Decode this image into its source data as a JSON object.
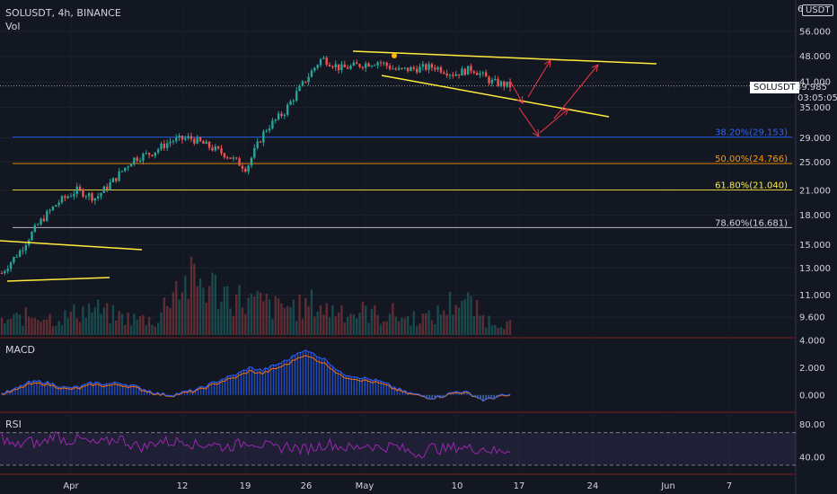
{
  "header": {
    "symbol_line": "SOLUSDT, 4h, BINANCE",
    "volume_label": "Vol",
    "currency_badge": "USDT",
    "top_tick": "6"
  },
  "colors": {
    "background": "#131722",
    "candle_up": "#26a69a",
    "candle_down": "#ef5350",
    "trendline": "#ffeb3b",
    "arrow": "#f23645",
    "macd_line": "#2962ff",
    "signal_line": "#ff6d00",
    "rsi_line": "#9c27b0",
    "fib_382": "#2962ff",
    "fib_50": "#ff9800",
    "fib_618": "#ffeb3b",
    "fib_786": "#d1d4dc"
  },
  "chart_data": {
    "type": "candlestick",
    "symbol": "SOLUSDT",
    "interval": "4h",
    "exchange": "BINANCE",
    "price_axis": {
      "scale": "log",
      "ylim": [
        8.5,
        65
      ],
      "ticks": [
        "56.000",
        "48.000",
        "41.000",
        "35.000",
        "29.000",
        "25.000",
        "21.000",
        "18.000",
        "15.000",
        "13.000",
        "11.000",
        "9.600"
      ],
      "tick_values": [
        56,
        48,
        41,
        35,
        29,
        25,
        21,
        18,
        15,
        13,
        11,
        9.6
      ]
    },
    "time_axis": {
      "ticks": [
        "Apr",
        "12",
        "19",
        "26",
        "May",
        "10",
        "17",
        "24",
        "Jun",
        "7"
      ]
    },
    "price_path": [
      {
        "t": "Mar 26",
        "close": 12.6
      },
      {
        "t": "Mar 28",
        "close": 14.5
      },
      {
        "t": "Mar 30",
        "close": 17.2
      },
      {
        "t": "Apr 1",
        "close": 19.5
      },
      {
        "t": "Apr 3",
        "close": 21.0
      },
      {
        "t": "Apr 5",
        "close": 20.0
      },
      {
        "t": "Apr 7",
        "close": 22.5
      },
      {
        "t": "Apr 9",
        "close": 25.5
      },
      {
        "t": "Apr 11",
        "close": 26.5
      },
      {
        "t": "Apr 13",
        "close": 28.5
      },
      {
        "t": "Apr 15",
        "close": 29.0
      },
      {
        "t": "Apr 17",
        "close": 27.5
      },
      {
        "t": "Apr 19",
        "close": 26.0
      },
      {
        "t": "Apr 20",
        "close": 24.0
      },
      {
        "t": "Apr 21",
        "close": 30.5
      },
      {
        "t": "Apr 23",
        "close": 34.0
      },
      {
        "t": "Apr 25",
        "close": 40.5
      },
      {
        "t": "Apr 27",
        "close": 47.5
      },
      {
        "t": "Apr 29",
        "close": 44.5
      },
      {
        "t": "May 1",
        "close": 45.5
      },
      {
        "t": "May 3",
        "close": 46.5
      },
      {
        "t": "May 5",
        "close": 44.0
      },
      {
        "t": "May 7",
        "close": 44.5
      },
      {
        "t": "May 9",
        "close": 45.0
      },
      {
        "t": "May 11",
        "close": 43.0
      },
      {
        "t": "May 13",
        "close": 44.5
      },
      {
        "t": "May 14",
        "close": 41.0
      },
      {
        "t": "May 16",
        "close": 39.985
      }
    ],
    "current_price": {
      "symbol": "SOLUSDT",
      "price": "39.985",
      "countdown": "03:05:05"
    },
    "fib_levels": [
      {
        "label": "38.20%(29.153)",
        "price": 29.153,
        "color": "#2962ff"
      },
      {
        "label": "50.00%(24.766)",
        "price": 24.766,
        "color": "#ff9800"
      },
      {
        "label": "61.80%(21.040)",
        "price": 21.04,
        "color": "#ffeb3b"
      },
      {
        "label": "78.60%(16.681)",
        "price": 16.681,
        "color": "#d1d4dc"
      }
    ],
    "macd": {
      "title": "MACD",
      "ylim": [
        -1.2,
        4.2
      ],
      "ticks": [
        "4.000",
        "2.000",
        "0.000"
      ],
      "tick_values": [
        4,
        2,
        0
      ],
      "path": [
        0.1,
        0.4,
        0.9,
        1.0,
        0.8,
        0.5,
        0.6,
        0.9,
        0.8,
        0.9,
        0.7,
        0.4,
        0.1,
        0.0,
        0.2,
        0.4,
        0.8,
        1.2,
        1.5,
        2.0,
        1.8,
        2.2,
        2.6,
        3.3,
        3.0,
        2.5,
        1.6,
        1.4,
        1.2,
        1.0,
        0.6,
        0.2,
        0.0,
        -0.2,
        0.0,
        0.3,
        0.1,
        -0.4,
        -0.1,
        0.0
      ]
    },
    "rsi": {
      "title": "RSI",
      "ylim": [
        20,
        95
      ],
      "ticks": [
        "80.00",
        "40.00"
      ],
      "tick_values": [
        80,
        40
      ],
      "bands": [
        70,
        30
      ],
      "path": [
        65,
        52,
        60,
        55,
        68,
        60,
        62,
        56,
        58,
        64,
        55,
        52,
        60,
        58,
        61,
        54,
        57,
        52,
        55,
        60,
        55,
        50,
        54,
        49,
        52,
        57,
        53,
        50,
        56,
        51,
        54,
        48,
        44,
        52,
        49,
        53,
        50,
        51,
        46,
        50
      ]
    },
    "volume": {
      "path": [
        0.25,
        0.3,
        0.35,
        0.4,
        0.3,
        0.35,
        0.45,
        0.5,
        0.4,
        0.35,
        0.3,
        0.3,
        0.25,
        0.9,
        0.95,
        1.0,
        0.9,
        0.8,
        0.7,
        0.6,
        0.6,
        0.5,
        0.55,
        0.5,
        0.6,
        0.45,
        0.5,
        0.4,
        0.45,
        0.35,
        0.4,
        0.3,
        0.35,
        0.3,
        0.5,
        0.7,
        0.55,
        0.3,
        0.25,
        0.2
      ]
    }
  }
}
